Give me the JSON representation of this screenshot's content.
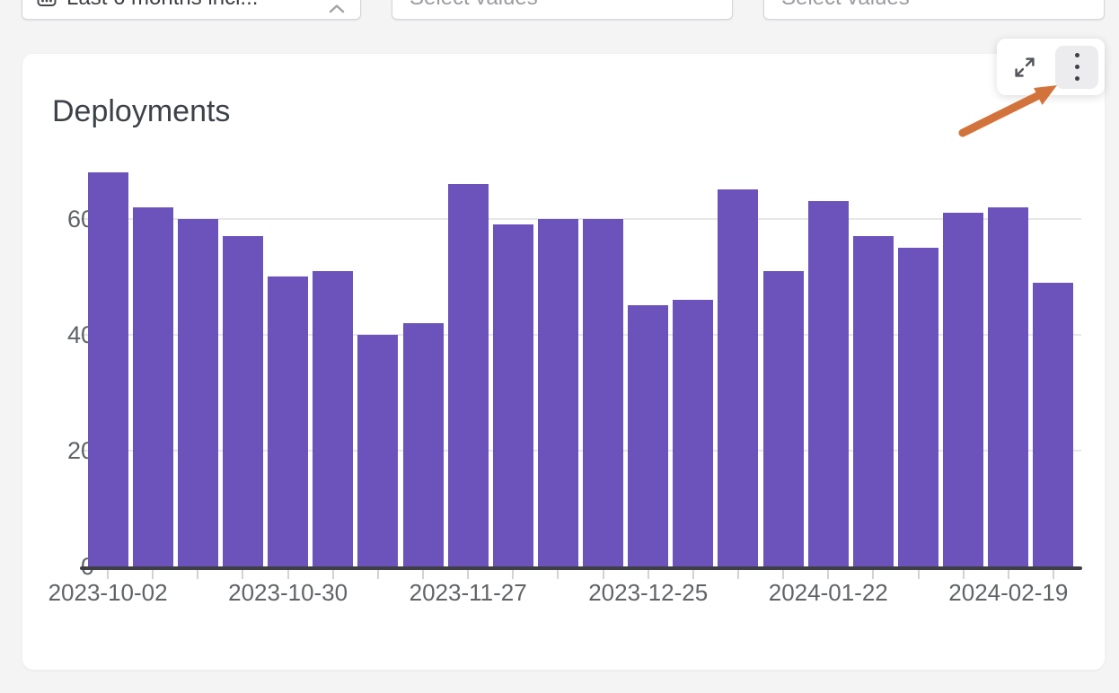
{
  "filters": {
    "date_range": {
      "value": "Last 6 months incl...",
      "icon": "calendar-range-icon"
    },
    "select_1": {
      "placeholder": "Select values"
    },
    "select_2": {
      "placeholder": "Select values"
    }
  },
  "panel": {
    "title": "Deployments"
  },
  "toolbar": {
    "expand_icon": "expand-icon",
    "menu_icon": "kebab-menu-icon"
  },
  "colors": {
    "page_bg": "#F4F4F5",
    "card_bg": "#FFFFFF",
    "bar": "#6C53BB",
    "gridline": "#E7E7EA",
    "axis_line": "#3E3E45",
    "axis_label": "#606367",
    "annotation_arrow": "#D2733B"
  },
  "chart_data": {
    "type": "bar",
    "title": "Deployments",
    "x": [
      "2023-10-02",
      "2023-10-09",
      "2023-10-16",
      "2023-10-23",
      "2023-10-30",
      "2023-11-06",
      "2023-11-13",
      "2023-11-20",
      "2023-11-27",
      "2023-12-04",
      "2023-12-11",
      "2023-12-18",
      "2023-12-25",
      "2024-01-01",
      "2024-01-08",
      "2024-01-15",
      "2024-01-22",
      "2024-01-29",
      "2024-02-05",
      "2024-02-12",
      "2024-02-19",
      "2024-02-26"
    ],
    "values": [
      68,
      62,
      60,
      57,
      50,
      51,
      40,
      42,
      66,
      59,
      60,
      60,
      45,
      46,
      65,
      51,
      63,
      57,
      55,
      61,
      62,
      49
    ],
    "x_label_interval": 4,
    "shown_x_labels": [
      "2023-10-02",
      "2023-10-30",
      "2023-11-27",
      "2023-12-25",
      "2024-01-22",
      "2024-02-19"
    ],
    "y_ticks": [
      0,
      20,
      40,
      60
    ],
    "ylim": [
      0,
      70
    ],
    "xlabel": "",
    "ylabel": "",
    "grid": true,
    "legend": false,
    "bar_color": "#6C53BB"
  }
}
